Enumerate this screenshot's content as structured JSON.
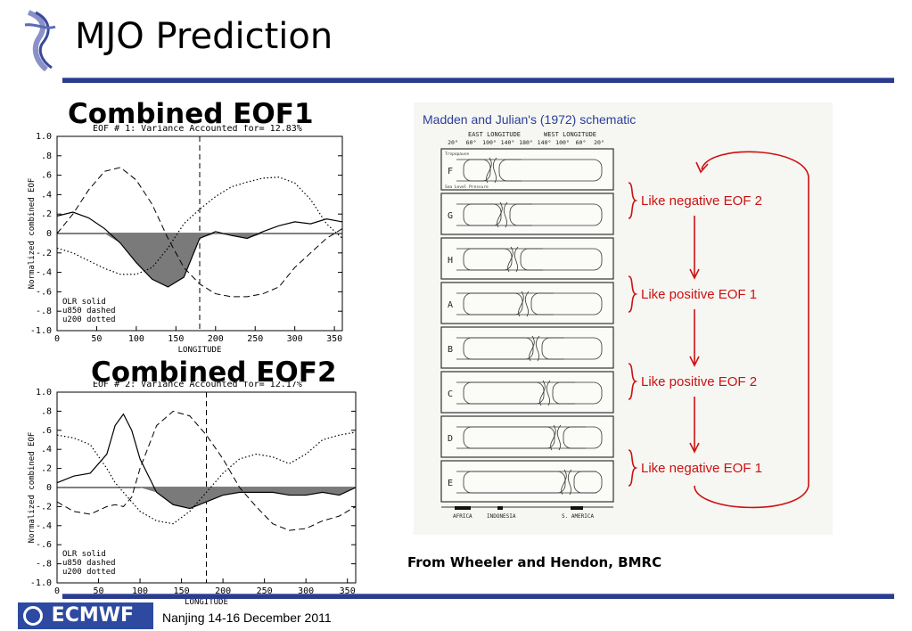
{
  "slide": {
    "title": "MJO Prediction",
    "footer": "Nanjing 14-16  December 2011",
    "logo_text": "ECMWF"
  },
  "eof1": {
    "title": "Combined EOF1",
    "header": "EOF # 1:  Variance Accounted for= 12.83%",
    "ylabel": "Normalized combined EOF",
    "xlabel": "LONGITUDE",
    "legend": [
      "OLR solid",
      "u850 dashed",
      "u200 dotted"
    ]
  },
  "eof2": {
    "title": "Combined EOF2",
    "header": "EOF # 2:  Variance Accounted for= 12.17%",
    "ylabel": "Normalized combined EOF",
    "xlabel": "LONGITUDE",
    "legend": [
      "OLR solid",
      "u850 dashed",
      "u200 dotted"
    ]
  },
  "schematic": {
    "title": "Madden and Julian's (1972) schematic",
    "east_longitude": "EAST LONGITUDE",
    "west_longitude": "WEST LONGITUDE",
    "lon_ticks": [
      "20°",
      "60°",
      "100°",
      "140°",
      "180°",
      "140°",
      "100°",
      "60°",
      "20°"
    ],
    "panel_letters": [
      "F",
      "G",
      "H",
      "A",
      "B",
      "C",
      "D",
      "E"
    ],
    "tropopause": "Tropopause",
    "sea_level": "Sea Level Pressure",
    "regions": [
      "AFRICA",
      "INDONESIA",
      "S. AMERICA"
    ],
    "annotations": [
      "Like negative EOF 2",
      "Like positive EOF 1",
      "Like positive EOF 2",
      "Like negative EOF 1"
    ],
    "credit": "From Wheeler and Hendon, BMRC"
  },
  "colors": {
    "accent": "#2b3c8c",
    "annotation": "#cc1111",
    "shade": "#7a7a7a"
  },
  "chart_data": [
    {
      "type": "line",
      "title": "EOF # 1:  Variance Accounted for= 12.83%",
      "xlabel": "LONGITUDE",
      "ylabel": "Normalized combined EOF",
      "xlim": [
        0,
        360
      ],
      "ylim": [
        -1.0,
        1.0
      ],
      "xticks": [
        0,
        50,
        100,
        150,
        200,
        250,
        300,
        350
      ],
      "yticks": [
        "1.0",
        ".8",
        ".6",
        ".4",
        ".2",
        "0",
        "-.2",
        "-.4",
        "-.6",
        "-.8",
        "-1.0"
      ],
      "vline": 180,
      "x": [
        0,
        20,
        40,
        60,
        80,
        100,
        120,
        140,
        160,
        180,
        200,
        220,
        240,
        260,
        280,
        300,
        320,
        340,
        360
      ],
      "series": [
        {
          "name": "OLR",
          "values": [
            0.18,
            0.22,
            0.16,
            0.05,
            -0.1,
            -0.3,
            -0.47,
            -0.55,
            -0.45,
            -0.05,
            0.02,
            -0.02,
            -0.05,
            0.02,
            0.08,
            0.12,
            0.1,
            0.15,
            0.12
          ]
        },
        {
          "name": "u850",
          "values": [
            0.0,
            0.2,
            0.45,
            0.64,
            0.68,
            0.55,
            0.3,
            -0.05,
            -0.35,
            -0.52,
            -0.62,
            -0.65,
            -0.65,
            -0.62,
            -0.55,
            -0.35,
            -0.2,
            -0.05,
            0.05
          ]
        },
        {
          "name": "u200",
          "values": [
            -0.15,
            -0.2,
            -0.28,
            -0.36,
            -0.42,
            -0.42,
            -0.35,
            -0.15,
            0.1,
            0.25,
            0.38,
            0.48,
            0.53,
            0.57,
            0.58,
            0.52,
            0.35,
            0.1,
            -0.05
          ]
        }
      ]
    },
    {
      "type": "line",
      "title": "EOF # 2:  Variance Accounted for= 12.17%",
      "xlabel": "LONGITUDE",
      "ylabel": "Normalized combined EOF",
      "xlim": [
        0,
        360
      ],
      "ylim": [
        -1.0,
        1.0
      ],
      "xticks": [
        0,
        50,
        100,
        150,
        200,
        250,
        300,
        350
      ],
      "yticks": [
        "1.0",
        ".8",
        ".6",
        ".4",
        ".2",
        "0",
        "-.2",
        "-.4",
        "-.6",
        "-.8",
        "-1.0"
      ],
      "vline": 180,
      "x": [
        0,
        20,
        40,
        60,
        70,
        80,
        90,
        100,
        120,
        140,
        160,
        180,
        200,
        220,
        240,
        260,
        280,
        300,
        320,
        340,
        360
      ],
      "series": [
        {
          "name": "OLR",
          "values": [
            0.05,
            0.12,
            0.15,
            0.35,
            0.65,
            0.77,
            0.6,
            0.3,
            -0.05,
            -0.18,
            -0.22,
            -0.15,
            -0.08,
            -0.05,
            -0.05,
            -0.05,
            -0.08,
            -0.08,
            -0.05,
            -0.08,
            0.0
          ]
        },
        {
          "name": "u850",
          "values": [
            -0.15,
            -0.25,
            -0.28,
            -0.2,
            -0.18,
            -0.2,
            -0.1,
            0.2,
            0.65,
            0.8,
            0.75,
            0.55,
            0.3,
            0.0,
            -0.2,
            -0.38,
            -0.45,
            -0.43,
            -0.35,
            -0.3,
            -0.2
          ]
        },
        {
          "name": "u200",
          "values": [
            0.55,
            0.52,
            0.45,
            0.2,
            0.05,
            -0.05,
            -0.15,
            -0.25,
            -0.35,
            -0.38,
            -0.25,
            -0.05,
            0.15,
            0.3,
            0.35,
            0.32,
            0.25,
            0.35,
            0.5,
            0.55,
            0.58
          ]
        }
      ]
    }
  ]
}
